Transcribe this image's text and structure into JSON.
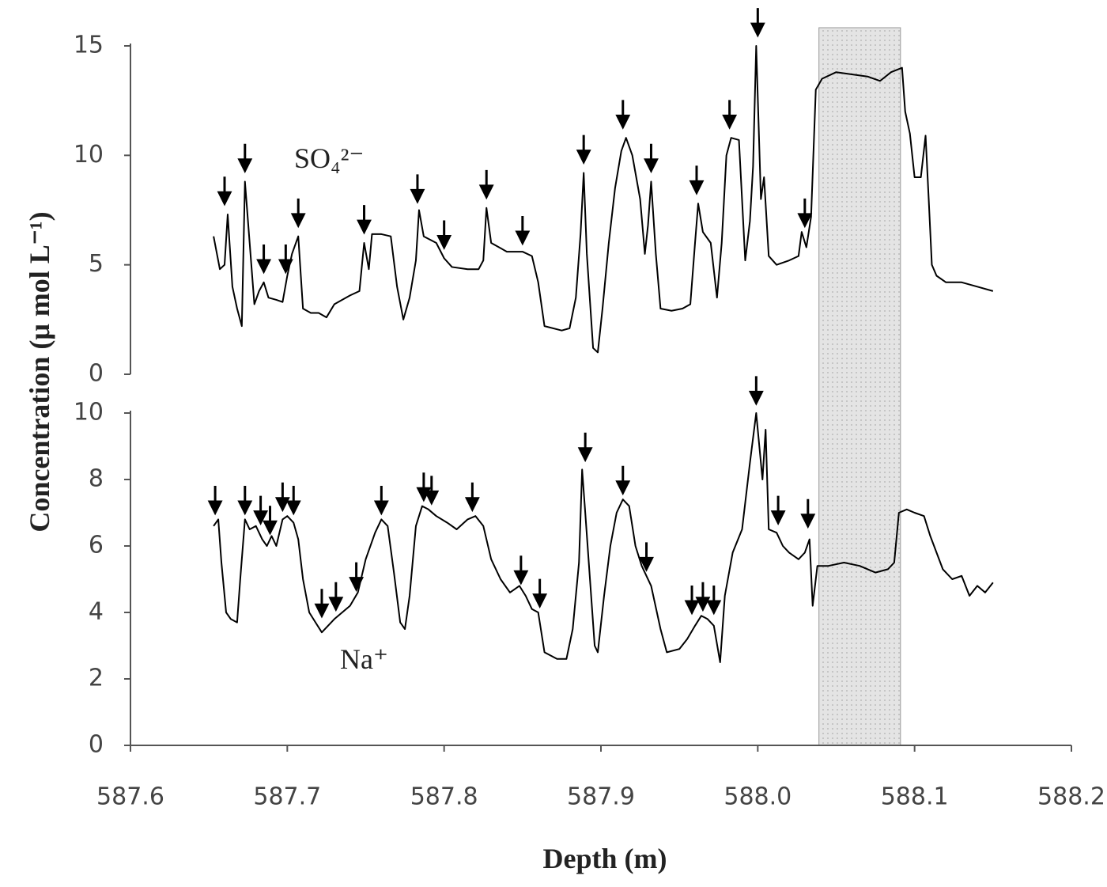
{
  "chart_data": [
    {
      "type": "line",
      "ylabel": "Concentration (μ mol L⁻¹)",
      "annotation": "SO₄²⁻",
      "color": "#000000",
      "ylim": [
        0,
        15
      ],
      "yticks": [
        0,
        5,
        10,
        15
      ],
      "xlim": [
        587.6,
        588.2
      ],
      "shaded_x": [
        588.039,
        588.091
      ],
      "x": [
        587.653,
        587.657,
        587.66,
        587.662,
        587.665,
        587.668,
        587.671,
        587.673,
        587.676,
        587.679,
        587.682,
        587.685,
        587.688,
        587.693,
        587.697,
        587.7,
        587.703,
        587.707,
        587.71,
        587.715,
        587.72,
        587.725,
        587.73,
        587.74,
        587.746,
        587.749,
        587.752,
        587.754,
        587.76,
        587.766,
        587.77,
        587.774,
        587.778,
        587.782,
        587.784,
        587.787,
        587.795,
        587.8,
        587.805,
        587.815,
        587.822,
        587.825,
        587.827,
        587.83,
        587.84,
        587.85,
        587.856,
        587.86,
        587.864,
        587.875,
        587.88,
        587.884,
        587.887,
        587.889,
        587.891,
        587.895,
        587.898,
        587.901,
        587.905,
        587.909,
        587.913,
        587.916,
        587.92,
        587.925,
        587.928,
        587.93,
        587.932,
        587.935,
        587.938,
        587.945,
        587.952,
        587.957,
        587.96,
        587.962,
        587.965,
        587.97,
        587.974,
        587.977,
        587.98,
        587.983,
        587.988,
        587.992,
        587.995,
        587.997,
        587.999,
        588.002,
        588.004,
        588.007,
        588.012,
        588.02,
        588.026,
        588.028,
        588.031,
        588.034,
        588.037,
        588.041,
        588.05,
        588.06,
        588.07,
        588.078,
        588.085,
        588.092,
        588.094,
        588.097,
        588.1,
        588.104,
        588.107,
        588.109,
        588.111,
        588.114,
        588.12,
        588.13,
        588.14,
        588.15
      ],
      "values": [
        6.3,
        4.8,
        5.0,
        7.3,
        4.0,
        3.0,
        2.2,
        8.8,
        6.0,
        3.2,
        3.8,
        4.2,
        3.5,
        3.4,
        3.3,
        4.5,
        5.5,
        6.3,
        3.0,
        2.8,
        2.8,
        2.6,
        3.2,
        3.6,
        3.8,
        6.0,
        4.8,
        6.4,
        6.4,
        6.3,
        4.0,
        2.5,
        3.5,
        5.2,
        7.5,
        6.3,
        6.0,
        5.3,
        4.9,
        4.8,
        4.8,
        5.2,
        7.6,
        6.0,
        5.6,
        5.6,
        5.4,
        4.2,
        2.2,
        2.0,
        2.1,
        3.5,
        6.4,
        9.2,
        5.5,
        1.2,
        1.0,
        3.0,
        6.0,
        8.5,
        10.2,
        10.8,
        10.0,
        8.0,
        5.5,
        6.8,
        8.8,
        5.5,
        3.0,
        2.9,
        3.0,
        3.2,
        6.0,
        7.8,
        6.5,
        6.0,
        3.5,
        6.0,
        10.0,
        10.8,
        10.7,
        5.2,
        7.0,
        9.5,
        15.0,
        8.0,
        9.0,
        5.4,
        5.0,
        5.2,
        5.4,
        6.5,
        5.8,
        7.2,
        13.0,
        13.5,
        13.8,
        13.7,
        13.6,
        13.4,
        13.8,
        14.0,
        12.0,
        11.0,
        9.0,
        9.0,
        10.9,
        8.0,
        5.0,
        4.5,
        4.2,
        4.2,
        4.0,
        3.8
      ],
      "arrows": {
        "x": [
          587.66,
          587.673,
          587.685,
          587.699,
          587.707,
          587.749,
          587.783,
          587.8,
          587.827,
          587.85,
          587.889,
          587.914,
          587.932,
          587.961,
          587.982,
          588.0,
          588.03
        ],
        "y": [
          7.8,
          9.3,
          4.7,
          4.7,
          6.8,
          6.5,
          7.9,
          5.8,
          8.1,
          6.0,
          9.7,
          11.3,
          9.3,
          8.3,
          11.3,
          15.5,
          6.8
        ]
      }
    },
    {
      "type": "line",
      "xlabel": "Depth (m)",
      "annotation": "Na⁺",
      "color": "#000000",
      "ylim": [
        0,
        10
      ],
      "yticks": [
        0,
        2,
        4,
        6,
        8,
        10
      ],
      "xlim": [
        587.6,
        588.2
      ],
      "xticks": [
        587.6,
        587.7,
        587.8,
        587.9,
        {
          "value": 588,
          "label": "588.0"
        },
        588.1,
        588.2
      ],
      "x": [
        587.653,
        587.656,
        587.658,
        587.661,
        587.664,
        587.668,
        587.67,
        587.673,
        587.676,
        587.68,
        587.684,
        587.687,
        587.69,
        587.693,
        587.697,
        587.7,
        587.704,
        587.707,
        587.71,
        587.714,
        587.718,
        587.722,
        587.726,
        587.73,
        587.735,
        587.74,
        587.745,
        587.75,
        587.756,
        587.76,
        587.764,
        587.768,
        587.772,
        587.775,
        587.778,
        587.782,
        587.786,
        587.79,
        587.795,
        587.802,
        587.808,
        587.815,
        587.82,
        587.825,
        587.83,
        587.836,
        587.842,
        587.848,
        587.852,
        587.856,
        587.86,
        587.864,
        587.872,
        587.878,
        587.882,
        587.886,
        587.888,
        587.89,
        587.893,
        587.896,
        587.898,
        587.902,
        587.906,
        587.91,
        587.914,
        587.918,
        587.922,
        587.926,
        587.932,
        587.938,
        587.942,
        587.95,
        587.955,
        587.96,
        587.964,
        587.968,
        587.972,
        587.976,
        587.979,
        587.984,
        587.99,
        587.995,
        587.999,
        588.003,
        588.005,
        588.007,
        588.012,
        588.016,
        588.02,
        588.026,
        588.03,
        588.033,
        588.035,
        588.038,
        588.045,
        588.055,
        588.065,
        588.075,
        588.083,
        588.087,
        588.09,
        588.095,
        588.1,
        588.106,
        588.11,
        588.114,
        588.118,
        588.124,
        588.13,
        588.135,
        588.14,
        588.145,
        588.15
      ],
      "values": [
        6.6,
        6.8,
        5.5,
        4.0,
        3.8,
        3.7,
        5.0,
        6.8,
        6.5,
        6.6,
        6.2,
        6.0,
        6.3,
        6.0,
        6.8,
        6.9,
        6.7,
        6.2,
        5.0,
        4.0,
        3.7,
        3.4,
        3.6,
        3.8,
        4.0,
        4.2,
        4.6,
        5.6,
        6.4,
        6.8,
        6.6,
        5.2,
        3.7,
        3.5,
        4.5,
        6.6,
        7.2,
        7.1,
        6.9,
        6.7,
        6.5,
        6.8,
        6.9,
        6.6,
        5.6,
        5.0,
        4.6,
        4.8,
        4.5,
        4.1,
        4.0,
        2.8,
        2.6,
        2.6,
        3.5,
        5.5,
        8.3,
        7.0,
        5.0,
        3.0,
        2.8,
        4.5,
        6.0,
        7.0,
        7.4,
        7.2,
        6.0,
        5.4,
        4.8,
        3.5,
        2.8,
        2.9,
        3.2,
        3.6,
        3.9,
        3.8,
        3.6,
        2.5,
        4.5,
        5.8,
        6.5,
        8.5,
        10.0,
        8.0,
        9.5,
        6.5,
        6.4,
        6.0,
        5.8,
        5.6,
        5.8,
        6.2,
        4.2,
        5.4,
        5.4,
        5.5,
        5.4,
        5.2,
        5.3,
        5.5,
        7.0,
        7.1,
        7.0,
        6.9,
        6.3,
        5.8,
        5.3,
        5.0,
        5.1,
        4.5,
        4.8,
        4.6,
        4.9
      ],
      "arrows": {
        "x": [
          587.654,
          587.673,
          587.683,
          587.689,
          587.697,
          587.704,
          587.722,
          587.731,
          587.744,
          587.76,
          587.787,
          587.792,
          587.818,
          587.849,
          587.861,
          587.89,
          587.914,
          587.929,
          587.958,
          587.965,
          587.972,
          587.999,
          588.013,
          588.032
        ],
        "y": [
          7.0,
          7.0,
          6.7,
          6.4,
          7.1,
          7.0,
          3.9,
          4.1,
          4.7,
          7.0,
          7.4,
          7.3,
          7.1,
          4.9,
          4.2,
          8.6,
          7.6,
          5.3,
          4.0,
          4.1,
          4.0,
          10.3,
          6.7,
          6.6
        ]
      }
    }
  ]
}
